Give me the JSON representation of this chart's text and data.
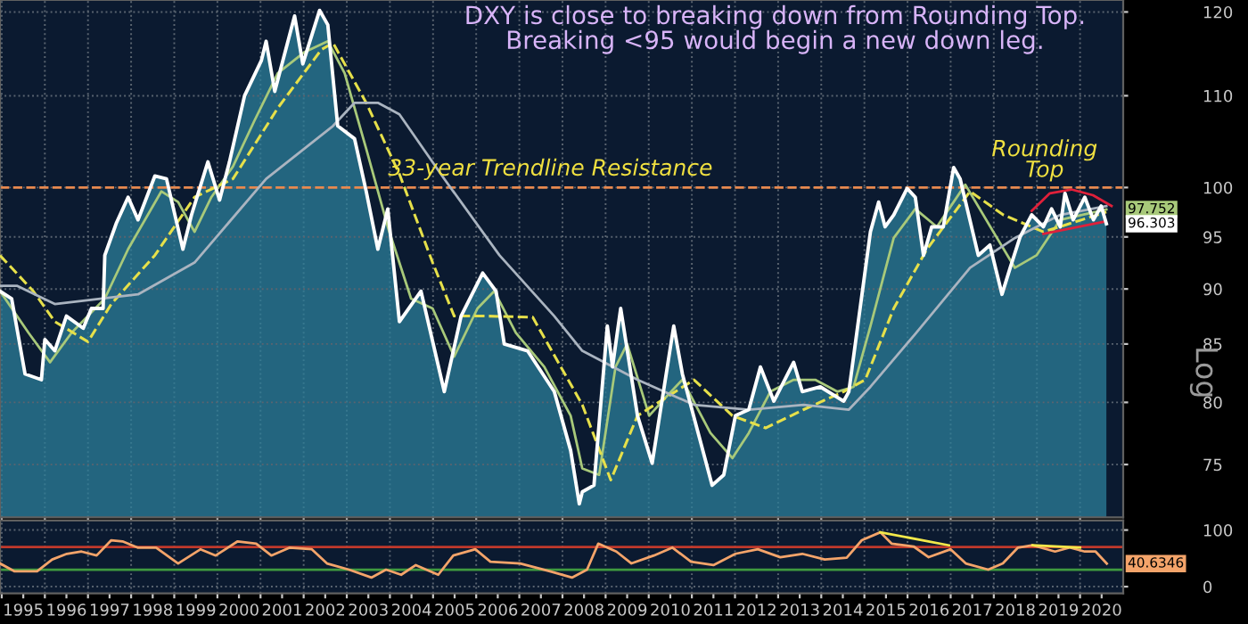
{
  "chart_data": [
    {
      "type": "line",
      "title": "DXY is close to breaking down from Rounding Top.\nBreaking <95 would begin a new down leg.",
      "ylabel": "Log",
      "log": true,
      "ylim": [
        71,
        121.5
      ],
      "yticks": [
        75,
        80,
        85,
        90,
        95,
        100,
        110,
        120
      ],
      "xlim": [
        1994.96,
        2021.0
      ],
      "xticks": [
        1995,
        1996,
        1997,
        1998,
        1999,
        2000,
        2001,
        2002,
        2003,
        2004,
        2005,
        2006,
        2007,
        2008,
        2009,
        2010,
        2011,
        2012,
        2013,
        2014,
        2015,
        2016,
        2017,
        2018,
        2019,
        2020
      ],
      "tick_labels": "y",
      "grid": true,
      "ref_lines": [
        {
          "axis": "y",
          "value": 100,
          "label": "33-year Trendline Resistance",
          "color": "#e8894f",
          "line_style": "dashed"
        }
      ],
      "annotations": [
        "Rounding\nTop",
        {
          "text": "97.752",
          "y": 97.752
        },
        {
          "text": "96.303",
          "y": 96.303
        }
      ],
      "series": [
        {
          "type": "area",
          "color": "#ffffff",
          "x": [
            1994.96,
            1995.23,
            1995.54,
            1995.92,
            1996.0,
            1996.23,
            1996.5,
            1996.89,
            1997.08,
            1997.35,
            1997.39,
            1997.66,
            1997.93,
            1998.16,
            1998.55,
            1998.82,
            1999.2,
            1999.4,
            1999.78,
            2000.05,
            2000.28,
            2000.63,
            2001.02,
            2001.13,
            2001.33,
            2001.79,
            2001.98,
            2002.37,
            2002.56,
            2002.79,
            2003.18,
            2003.45,
            2003.72,
            2003.95,
            2004.22,
            2004.72,
            2005.26,
            2005.65,
            2006.15,
            2006.46,
            2006.65,
            2007.19,
            2007.81,
            2008.19,
            2008.39,
            2008.46,
            2008.73,
            2009.04,
            2009.16,
            2009.35,
            2009.74,
            2010.08,
            2010.58,
            2010.78,
            2011.47,
            2011.74,
            2012.01,
            2012.32,
            2012.59,
            2012.9,
            2013.36,
            2013.56,
            2013.98,
            2014.52,
            2014.64,
            2015.14,
            2015.33,
            2015.48,
            2015.68,
            2015.99,
            2016.18,
            2016.37,
            2016.56,
            2016.83,
            2017.07,
            2017.22,
            2017.64,
            2017.91,
            2018.19,
            2018.38,
            2018.61,
            2018.88,
            2019.15,
            2019.34,
            2019.54,
            2019.65,
            2019.84,
            2020.11,
            2020.31,
            2020.49,
            2020.61
          ],
          "values": [
            89.8,
            89.1,
            82.4,
            81.9,
            85.4,
            84.4,
            87.5,
            86.4,
            88.2,
            88.2,
            93.2,
            96.4,
            99.0,
            96.7,
            101.2,
            100.9,
            93.8,
            97.2,
            102.7,
            98.7,
            102.7,
            110.0,
            114.1,
            116.4,
            110.5,
            119.5,
            113.7,
            120.2,
            118.4,
            106.6,
            105.2,
            99.6,
            93.8,
            97.8,
            87.0,
            89.8,
            80.9,
            87.5,
            91.5,
            89.8,
            85.0,
            84.4,
            80.9,
            76.1,
            72.0,
            72.9,
            73.4,
            86.6,
            83.0,
            88.2,
            78.9,
            75.1,
            86.6,
            82.4,
            73.4,
            74.2,
            78.9,
            79.4,
            83.0,
            80.1,
            83.4,
            80.9,
            81.3,
            80.1,
            80.9,
            95.5,
            98.5,
            96.0,
            97.2,
            99.9,
            99.0,
            93.2,
            96.0,
            96.0,
            102.1,
            100.9,
            93.2,
            94.2,
            89.5,
            92.0,
            95.0,
            97.2,
            96.0,
            97.8,
            96.0,
            99.4,
            96.7,
            99.0,
            96.7,
            98.1,
            96.303
          ]
        },
        {
          "color": "#a8c97a",
          "x": [
            1994.96,
            1995.62,
            1996.12,
            1996.62,
            1997.39,
            1997.93,
            1998.7,
            1999.09,
            1999.47,
            1999.86,
            2000.36,
            2000.86,
            2001.4,
            2002.02,
            2002.56,
            2002.95,
            2003.45,
            2003.95,
            2004.49,
            2004.99,
            2005.49,
            2006.03,
            2006.42,
            2006.92,
            2007.58,
            2008.19,
            2008.46,
            2008.85,
            2009.23,
            2009.5,
            2010.01,
            2010.39,
            2010.78,
            2011.43,
            2011.94,
            2012.32,
            2012.82,
            2013.36,
            2013.86,
            2014.37,
            2014.75,
            2015.14,
            2015.68,
            2016.18,
            2016.68,
            2017.34,
            2017.99,
            2018.49,
            2018.99,
            2019.54,
            2020.04,
            2020.61
          ],
          "values": [
            89.8,
            86.0,
            83.4,
            86.0,
            89.1,
            93.8,
            99.6,
            98.5,
            95.5,
            99.0,
            102.2,
            107.2,
            112.6,
            115.1,
            116.4,
            112.6,
            104.1,
            96.0,
            89.1,
            88.2,
            83.9,
            88.2,
            89.8,
            86.0,
            83.0,
            78.9,
            74.7,
            74.2,
            83.0,
            85.0,
            78.9,
            80.4,
            81.9,
            77.5,
            75.5,
            77.5,
            80.9,
            81.9,
            81.9,
            80.9,
            81.3,
            86.6,
            94.9,
            97.8,
            96.0,
            100.3,
            95.5,
            92.0,
            93.2,
            96.7,
            97.2,
            97.752
          ]
        },
        {
          "color": "#e6e04a",
          "line_style": "dashed",
          "x": [
            1994.96,
            1995.73,
            1996.23,
            1997.0,
            1997.54,
            1998.55,
            1999.47,
            2000.36,
            2001.4,
            2002.41,
            2002.68,
            2003.45,
            2004.22,
            2004.99,
            2005.49,
            2006.26,
            2007.31,
            2008.46,
            2009.12,
            2009.74,
            2011.05,
            2011.94,
            2012.71,
            2013.59,
            2014.52,
            2015.02,
            2015.68,
            2016.45,
            2017.45,
            2018.22,
            2019.15,
            2020.04,
            2020.61
          ],
          "values": [
            93.2,
            89.8,
            87.0,
            85.2,
            88.6,
            93.2,
            99.0,
            100.9,
            108.6,
            115.4,
            116.2,
            109.2,
            101.4,
            92.5,
            87.5,
            87.5,
            87.4,
            79.8,
            73.8,
            78.9,
            81.9,
            78.9,
            77.9,
            79.4,
            80.9,
            81.9,
            88.2,
            93.8,
            99.6,
            97.2,
            95.5,
            96.7,
            97.5
          ]
        },
        {
          "color": "#aab4c0",
          "x": [
            1994.96,
            1995.35,
            1996.23,
            1998.16,
            1999.47,
            2001.13,
            2002.68,
            2003.18,
            2003.72,
            2004.22,
            2005.26,
            2006.54,
            2007.81,
            2008.46,
            2009.74,
            2011.05,
            2012.32,
            2013.59,
            2014.64,
            2015.14,
            2016.18,
            2017.45,
            2018.49,
            2019.54,
            2020.61
          ],
          "values": [
            90.3,
            90.3,
            88.6,
            89.5,
            92.5,
            100.9,
            106.6,
            109.2,
            109.2,
            107.9,
            100.9,
            93.2,
            87.5,
            84.4,
            81.9,
            79.8,
            79.4,
            79.8,
            79.4,
            81.3,
            85.9,
            92.0,
            94.9,
            97.2,
            98.1
          ]
        },
        {
          "color": "#e0203a",
          "x": [
            2018.88,
            2019.3,
            2019.8,
            2020.3,
            2020.73
          ],
          "values": [
            97.6,
            99.4,
            99.8,
            99.2,
            98.1
          ]
        },
        {
          "color": "#e0203a",
          "x": [
            2019.15,
            2020.54
          ],
          "values": [
            95.3,
            96.5
          ]
        }
      ]
    },
    {
      "type": "line",
      "ylim": [
        -12,
        117
      ],
      "yticks": [
        0,
        100
      ],
      "xlim": [
        1994.96,
        2021.0
      ],
      "grid": true,
      "xticks": [
        {
          "value": 1995,
          "label": null
        },
        {
          "value": 1995.5,
          "label": "1995"
        },
        {
          "value": 1996,
          "label": null
        },
        {
          "value": 1996.5,
          "label": "1996"
        },
        {
          "value": 1997,
          "label": null
        },
        {
          "value": 1997.5,
          "label": "1997"
        },
        {
          "value": 1998,
          "label": null
        },
        {
          "value": 1998.5,
          "label": "1998"
        },
        {
          "value": 1999,
          "label": null
        },
        {
          "value": 1999.5,
          "label": "1999"
        },
        {
          "value": 2000,
          "label": null
        },
        {
          "value": 2000.5,
          "label": "2000"
        },
        {
          "value": 2001,
          "label": null
        },
        {
          "value": 2001.5,
          "label": "2001"
        },
        {
          "value": 2002,
          "label": null
        },
        {
          "value": 2002.5,
          "label": "2002"
        },
        {
          "value": 2003,
          "label": null
        },
        {
          "value": 2003.5,
          "label": "2003"
        },
        {
          "value": 2004,
          "label": null
        },
        {
          "value": 2004.5,
          "label": "2004"
        },
        {
          "value": 2005,
          "label": null
        },
        {
          "value": 2005.5,
          "label": "2005"
        },
        {
          "value": 2006,
          "label": null
        },
        {
          "value": 2006.5,
          "label": "2006"
        },
        {
          "value": 2007,
          "label": null
        },
        {
          "value": 2007.5,
          "label": "2007"
        },
        {
          "value": 2008,
          "label": null
        },
        {
          "value": 2008.5,
          "label": "2008"
        },
        {
          "value": 2009,
          "label": null
        },
        {
          "value": 2009.5,
          "label": "2009"
        },
        {
          "value": 2010,
          "label": null
        },
        {
          "value": 2010.5,
          "label": "2010"
        },
        {
          "value": 2011,
          "label": null
        },
        {
          "value": 2011.5,
          "label": "2011"
        },
        {
          "value": 2012,
          "label": null
        },
        {
          "value": 2012.5,
          "label": "2012"
        },
        {
          "value": 2013,
          "label": null
        },
        {
          "value": 2013.5,
          "label": "2013"
        },
        {
          "value": 2014,
          "label": null
        },
        {
          "value": 2014.5,
          "label": "2014"
        },
        {
          "value": 2015,
          "label": null
        },
        {
          "value": 2015.5,
          "label": "2015"
        },
        {
          "value": 2016,
          "label": null
        },
        {
          "value": 2016.5,
          "label": "2016"
        },
        {
          "value": 2017,
          "label": null
        },
        {
          "value": 2017.5,
          "label": "2017"
        },
        {
          "value": 2018,
          "label": null
        },
        {
          "value": 2018.5,
          "label": "2018"
        },
        {
          "value": 2019,
          "label": null
        },
        {
          "value": 2019.5,
          "label": "2019"
        },
        {
          "value": 2020,
          "label": null
        },
        {
          "value": 2020.5,
          "label": "2020"
        }
      ],
      "ref_lines": [
        {
          "axis": "y",
          "value": 70,
          "color": "#c0392b"
        },
        {
          "axis": "y",
          "value": 30,
          "color": "#3f9a3f"
        }
      ],
      "series": [
        {
          "color": "#f4a46a",
          "x": [
            1994.96,
            1995.3,
            1995.82,
            1996.17,
            1996.51,
            1996.85,
            1997.2,
            1997.54,
            1997.8,
            1998.15,
            1998.58,
            1999.09,
            1999.61,
            1999.96,
            2000.47,
            2000.9,
            2001.25,
            2001.68,
            2002.19,
            2002.54,
            2003.05,
            2003.57,
            2003.91,
            2004.26,
            2004.6,
            2005.12,
            2005.47,
            2005.98,
            2006.33,
            2007.02,
            2007.71,
            2008.22,
            2008.57,
            2008.83,
            2009.25,
            2009.6,
            2010.12,
            2010.55,
            2010.98,
            2011.5,
            2012.01,
            2012.53,
            2013.05,
            2013.56,
            2014.08,
            2014.59,
            2014.94,
            2015.37,
            2015.63,
            2016.14,
            2016.49,
            2017.0,
            2017.35,
            2017.87,
            2018.21,
            2018.56,
            2018.9,
            2019.42,
            2019.76,
            2020.11,
            2020.36,
            2020.62
          ],
          "values": [
            41,
            27,
            27,
            48,
            58,
            62,
            55,
            82,
            80,
            69,
            69,
            41,
            66,
            55,
            80,
            76,
            55,
            69,
            66,
            41,
            30,
            16,
            30,
            21,
            38,
            21,
            55,
            66,
            44,
            41,
            27,
            16,
            30,
            76,
            62,
            41,
            55,
            69,
            44,
            38,
            58,
            66,
            52,
            58,
            48,
            51,
            82,
            96,
            76,
            71,
            52,
            66,
            41,
            30,
            41,
            69,
            73,
            62,
            69,
            62,
            62,
            40.6346
          ],
          "value_labels": [
            null,
            null,
            null,
            null,
            null,
            null,
            null,
            null,
            null,
            null,
            null,
            null,
            null,
            null,
            null,
            null,
            null,
            null,
            null,
            null,
            null,
            null,
            null,
            null,
            null,
            null,
            null,
            null,
            null,
            null,
            null,
            null,
            null,
            null,
            null,
            null,
            null,
            null,
            null,
            null,
            null,
            null,
            null,
            null,
            null,
            null,
            null,
            null,
            null,
            null,
            null,
            null,
            null,
            null,
            null,
            null,
            null,
            null,
            null,
            null,
            null,
            "40.6346"
          ]
        },
        {
          "color": "#f2e84a",
          "x": [
            2015.37,
            2016.96
          ],
          "values": [
            96,
            73
          ]
        },
        {
          "color": "#f2e84a",
          "x": [
            2018.9,
            2020.0
          ],
          "values": [
            73,
            69
          ]
        }
      ]
    }
  ]
}
